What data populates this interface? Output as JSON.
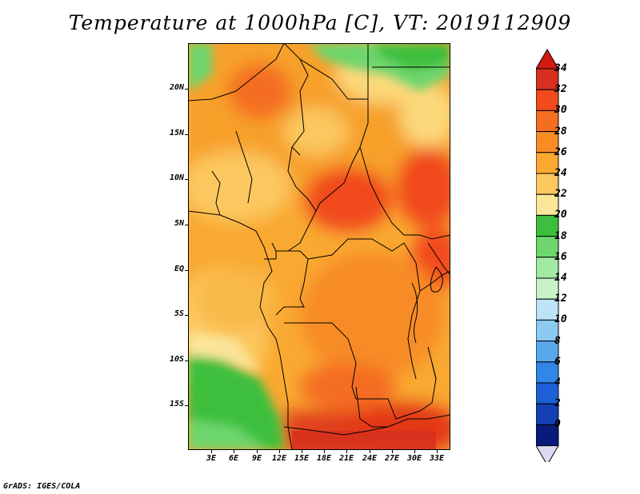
{
  "title": "Temperature at 1000hPa [C], VT: 2019112909",
  "footer": "GrADS: IGES/COLA",
  "lat_labels": [
    "20N",
    "15N",
    "10N",
    "5N",
    "EQ",
    "5S",
    "10S",
    "15S"
  ],
  "lon_labels": [
    "3E",
    "6E",
    "9E",
    "12E",
    "15E",
    "18E",
    "21E",
    "24E",
    "27E",
    "30E",
    "33E"
  ],
  "colorbar": {
    "labels": [
      "34",
      "32",
      "30",
      "28",
      "26",
      "24",
      "22",
      "20",
      "18",
      "16",
      "14",
      "12",
      "10",
      "8",
      "6",
      "4",
      "2",
      "0"
    ],
    "colors": [
      "#d7301f",
      "#f14a1c",
      "#f46d20",
      "#f78c25",
      "#f9a931",
      "#fbc75f",
      "#fbe599",
      "#3cbf3c",
      "#6dd66d",
      "#a1eaa1",
      "#c9f2c9",
      "#bde3f7",
      "#8ccaf2",
      "#5aa8ec",
      "#3186e6",
      "#1c5fd6",
      "#1440b5",
      "#0a1a7a"
    ],
    "top_color": "#d21a12",
    "bottom_color": "#dcd9f2"
  }
}
